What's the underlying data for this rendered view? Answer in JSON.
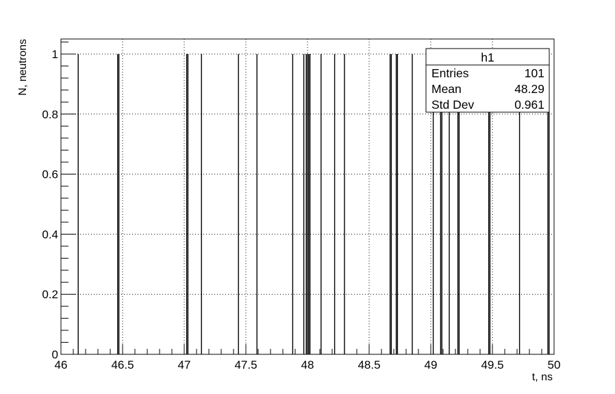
{
  "chart_data": {
    "type": "bar",
    "title": "",
    "xlabel": "t, ns",
    "ylabel": "N, neutrons",
    "xlim": [
      46,
      50
    ],
    "ylim": [
      0,
      1.05
    ],
    "grid": true,
    "x_ticks": [
      "46",
      "46.5",
      "47",
      "47.5",
      "48",
      "48.5",
      "49",
      "49.5",
      "50"
    ],
    "y_ticks": [
      "0",
      "0.2",
      "0.4",
      "0.6",
      "0.8",
      "1"
    ],
    "bar_height": 1,
    "bar_x": [
      46.14,
      46.46,
      46.47,
      47.02,
      47.03,
      47.14,
      47.44,
      47.59,
      47.88,
      47.97,
      47.99,
      48.0,
      48.01,
      48.02,
      48.11,
      48.22,
      48.3,
      48.67,
      48.68,
      48.72,
      48.73,
      48.85,
      49.02,
      49.08,
      49.09,
      49.15,
      49.22,
      49.23,
      49.47,
      49.48,
      49.72,
      49.95,
      49.96
    ],
    "stats_box": {
      "name": "h1",
      "rows": [
        {
          "label": "Entries",
          "value": "101"
        },
        {
          "label": "Mean",
          "value": "48.29"
        },
        {
          "label": "Std Dev",
          "value": "0.961"
        }
      ]
    }
  }
}
